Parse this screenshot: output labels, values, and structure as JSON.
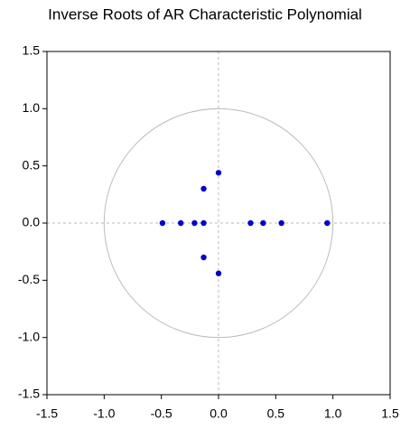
{
  "chart_data": {
    "type": "scatter",
    "title": "Inverse Roots of AR Characteristic Polynomial",
    "x": [
      0.95,
      0.55,
      0.39,
      0.28,
      0,
      0,
      -0.13,
      -0.13,
      -0.13,
      -0.21,
      -0.33,
      -0.49
    ],
    "values": [
      0,
      0,
      0,
      0,
      0.44,
      -0.44,
      0.3,
      -0.3,
      0,
      0,
      0,
      0
    ],
    "color": "#0000c8",
    "xlim": [
      -1.5,
      1.5
    ],
    "xticks": [
      -1.5,
      {
        "value": -1.0,
        "label": "-1.0"
      },
      -0.5,
      {
        "value": 0,
        "label": "0.0"
      },
      0.5,
      {
        "value": 1.0,
        "label": "1.0"
      },
      1.5
    ],
    "ylim": [
      -1.5,
      1.5
    ],
    "yticks": [
      -1.5,
      {
        "value": -1.0,
        "label": "-1.0"
      },
      -0.5,
      {
        "value": 0,
        "label": "0.0"
      },
      0.5,
      {
        "value": 1.0,
        "label": "1.0"
      },
      1.5
    ],
    "grid": false
  }
}
